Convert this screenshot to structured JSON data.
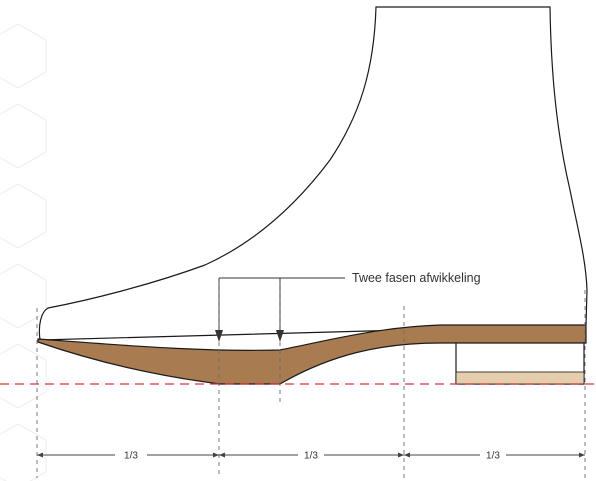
{
  "annotation": {
    "label": "Twee fasen afwikkeling"
  },
  "dimensions": {
    "segments": [
      "1/3",
      "1/3",
      "1/3"
    ]
  },
  "colors": {
    "outline": "#1a1a1a",
    "sole": "#a87c50",
    "heel_top_piece": "#e6cdae",
    "ground_line": "#e0303a",
    "guide_line": "#6a6a6a",
    "texture": "#eef0f3"
  }
}
